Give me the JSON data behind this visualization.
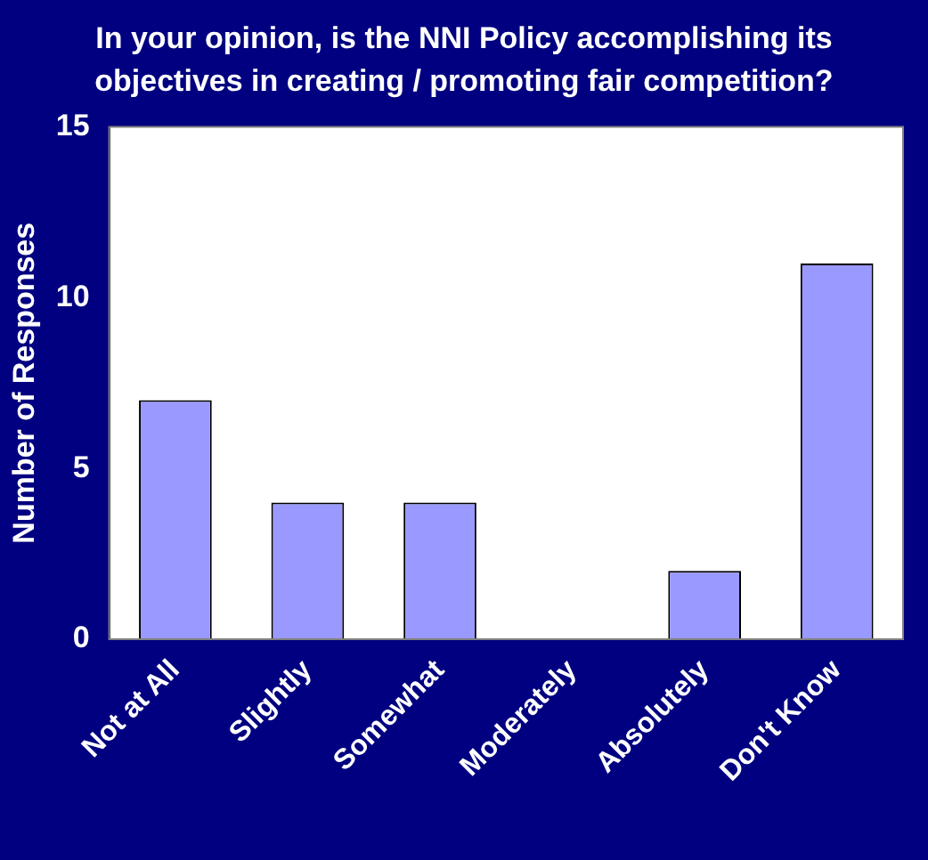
{
  "chart_data": {
    "type": "bar",
    "title": "In your opinion, is the NNI Policy accomplishing its objectives in creating / promoting fair competition?",
    "ylabel": "Number of Responses",
    "categories": [
      "Not at All",
      "Slightly",
      "Somewhat",
      "Moderately",
      "Absolutely",
      "Don't Know"
    ],
    "values": [
      7,
      4,
      4,
      0,
      2,
      11
    ],
    "color": "#9999ff",
    "ylim": [
      0,
      15
    ],
    "yticks": [
      0,
      5,
      10,
      15
    ],
    "grid": false,
    "legend": false
  }
}
